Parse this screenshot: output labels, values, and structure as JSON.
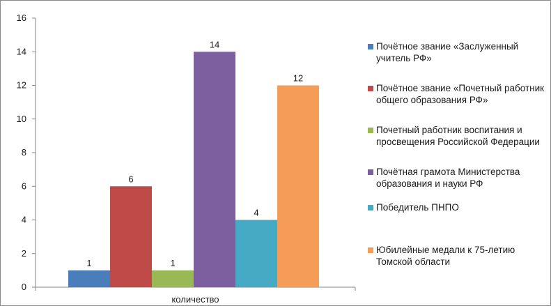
{
  "chart_data": {
    "type": "bar",
    "categories": [
      "количество"
    ],
    "series": [
      {
        "name": "Почётное звание «Заслуженный учитель РФ»",
        "values": [
          1
        ],
        "color": "#4a7ebb"
      },
      {
        "name": "Почётное звание «Почетный работник общего образования РФ»",
        "values": [
          6
        ],
        "color": "#be4b48"
      },
      {
        "name": "Почетный работник воспитания и просвещения Российской Федерации",
        "values": [
          1
        ],
        "color": "#98b954"
      },
      {
        "name": "Почётная грамота Министерства образования и науки РФ",
        "values": [
          14
        ],
        "color": "#7d5fa0"
      },
      {
        "name": "Победитель ПНПО",
        "values": [
          4
        ],
        "color": "#46aac5"
      },
      {
        "name": "Юбилейные медали к 75-летию Томской области",
        "values": [
          12
        ],
        "color": "#f59d56"
      }
    ],
    "ylim": [
      0,
      16
    ],
    "yticks": [
      "0",
      "2",
      "4",
      "6",
      "8",
      "10",
      "12",
      "14",
      "16"
    ],
    "data_labels": [
      "1",
      "6",
      "1",
      "14",
      "4",
      "12"
    ],
    "title": "",
    "xlabel": "",
    "ylabel": "",
    "grid": false,
    "legend_position": "right"
  }
}
